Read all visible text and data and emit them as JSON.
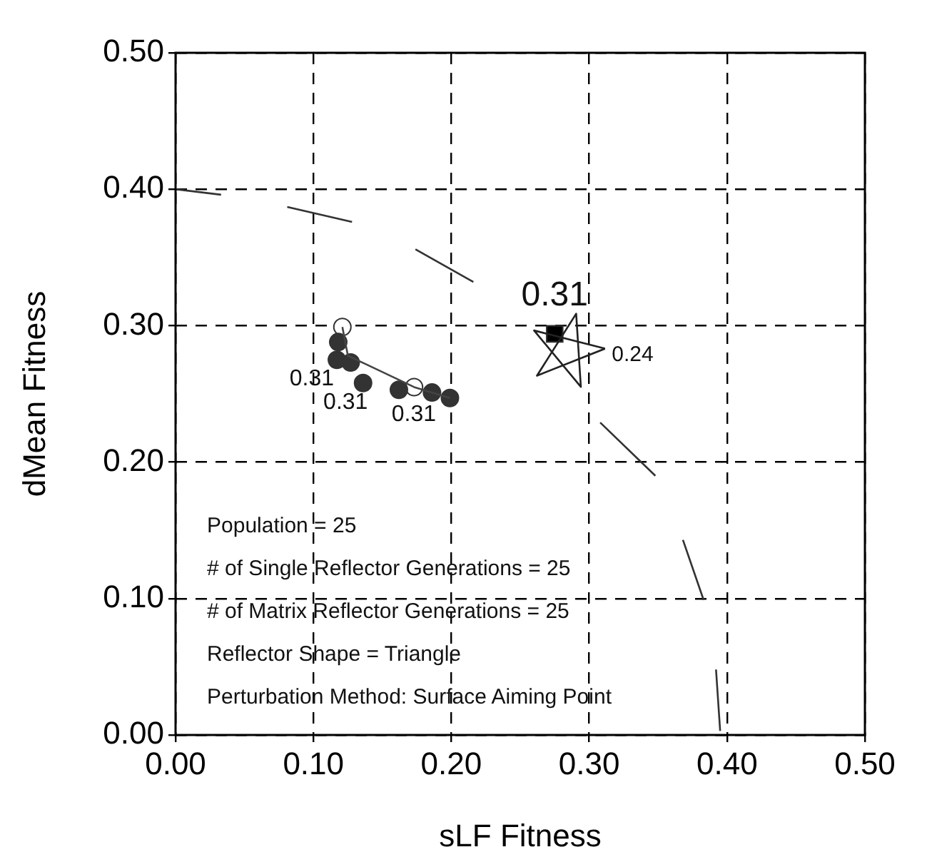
{
  "chart_data": {
    "type": "scatter",
    "xlabel": "sLF Fitness",
    "ylabel": "dMean Fitness",
    "xlim": [
      0,
      0.5
    ],
    "ylim": [
      0,
      0.5
    ],
    "xticks": [
      {
        "value": 0,
        "label": "0.00"
      },
      {
        "value": 0.1,
        "label": "0.10"
      },
      {
        "value": 0.2,
        "label": "0.20"
      },
      {
        "value": 0.3,
        "label": "0.30"
      },
      {
        "value": 0.4,
        "label": "0.40"
      },
      {
        "value": 0.5,
        "label": "0.50"
      }
    ],
    "yticks": [
      {
        "value": 0,
        "label": "0.00"
      },
      {
        "value": 0.1,
        "label": "0.10"
      },
      {
        "value": 0.2,
        "label": "0.20"
      },
      {
        "value": 0.3,
        "label": "0.30"
      },
      {
        "value": 0.4,
        "label": "0.40"
      },
      {
        "value": 0.5,
        "label": "0.50"
      }
    ],
    "grid": true,
    "legend": false,
    "series": [
      {
        "type": "line",
        "marker": "none",
        "color": "#333333",
        "x": [
          0,
          0.033,
          0.05,
          0.081,
          0.128,
          0.15,
          0.174,
          0.216,
          0.26,
          0.308,
          0.348,
          0.36,
          0.368,
          0.383,
          0.388,
          0.392,
          0.395
        ],
        "values": [
          0.4,
          0.396,
          null,
          0.387,
          0.376,
          null,
          0.356,
          0.332,
          null,
          0.229,
          0.19,
          null,
          0.143,
          0.099,
          null,
          0.048,
          0.003
        ]
      },
      {
        "type": "line",
        "marker": "none",
        "color": "#444444",
        "x": [
          0.121,
          0.125,
          0.173,
          0.199
        ],
        "values": [
          0.299,
          0.278,
          0.255,
          0.247
        ]
      },
      {
        "type": "scatter",
        "marker": "circle",
        "color": "#333333",
        "x": [
          0.118,
          0.117,
          0.127,
          0.136,
          0.162,
          0.186,
          0.199
        ],
        "values": [
          0.288,
          0.275,
          0.273,
          0.258,
          0.253,
          0.251,
          0.247
        ]
      },
      {
        "type": "scatter",
        "marker": "circle",
        "color": "#ffffff",
        "x": [
          0.121,
          0.173
        ],
        "values": [
          0.299,
          0.255
        ]
      },
      {
        "type": "scatter",
        "marker": "square",
        "color": "#000000",
        "x": [
          0.275
        ],
        "values": [
          0.294
        ]
      }
    ],
    "annotations": [
      {
        "text": "0.31",
        "x": 0.275,
        "y": 0.294
      },
      {
        "text": "0.24",
        "x": 0.275,
        "y": 0.294
      },
      {
        "text": "0.31",
        "x": 0.117,
        "y": 0.275
      },
      {
        "text": "0.31",
        "x": 0.127,
        "y": 0.26
      },
      {
        "text": "0.31",
        "x": 0.162,
        "y": 0.253
      },
      "Population = 25",
      "# of Single Reflector Generations = 25",
      "# of Matrix Reflector Generations = 25",
      "Reflector Shape = Triangle",
      "Perturbation Method: Surface Aiming Point"
    ]
  }
}
